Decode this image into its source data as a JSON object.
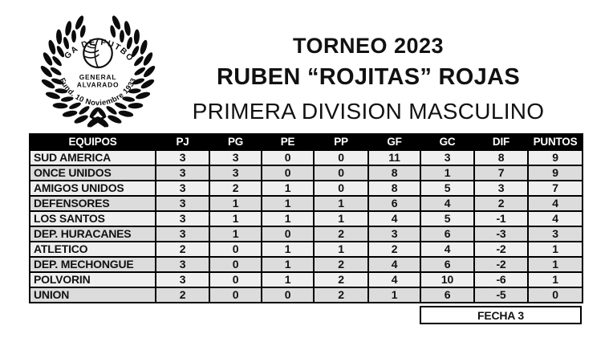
{
  "logo": {
    "arc_top_text": "LIGA DE FUTBOL",
    "center_text_line1": "GENERAL",
    "center_text_line2": "ALVARADO",
    "arc_bottom_text": "Fund. 10 Noviembre 1933"
  },
  "titles": {
    "tournament": "TORNEO 2023",
    "honoree": "RUBEN “ROJITAS” ROJAS",
    "division": "PRIMERA DIVISION MASCULINO"
  },
  "standings": {
    "columns": [
      "EQUIPOS",
      "PJ",
      "PG",
      "PE",
      "PP",
      "GF",
      "GC",
      "DIF",
      "PUNTOS"
    ],
    "rows": [
      {
        "team": "SUD AMERICA",
        "stats": [
          "3",
          "3",
          "0",
          "0",
          "11",
          "3",
          "8",
          "9"
        ]
      },
      {
        "team": "ONCE UNIDOS",
        "stats": [
          "3",
          "3",
          "0",
          "0",
          "8",
          "1",
          "7",
          "9"
        ]
      },
      {
        "team": "AMIGOS UNIDOS",
        "stats": [
          "3",
          "2",
          "1",
          "0",
          "8",
          "5",
          "3",
          "7"
        ]
      },
      {
        "team": "DEFENSORES",
        "stats": [
          "3",
          "1",
          "1",
          "1",
          "6",
          "4",
          "2",
          "4"
        ]
      },
      {
        "team": "LOS SANTOS",
        "stats": [
          "3",
          "1",
          "1",
          "1",
          "4",
          "5",
          "-1",
          "4"
        ]
      },
      {
        "team": "DEP. HURACANES",
        "stats": [
          "3",
          "1",
          "0",
          "2",
          "3",
          "6",
          "-3",
          "3"
        ]
      },
      {
        "team": "ATLETICO",
        "stats": [
          "2",
          "0",
          "1",
          "1",
          "2",
          "4",
          "-2",
          "1"
        ]
      },
      {
        "team": "DEP. MECHONGUE",
        "stats": [
          "3",
          "0",
          "1",
          "2",
          "4",
          "6",
          "-2",
          "1"
        ]
      },
      {
        "team": "POLVORIN",
        "stats": [
          "3",
          "0",
          "1",
          "2",
          "4",
          "10",
          "-6",
          "1"
        ]
      },
      {
        "team": "UNION",
        "stats": [
          "2",
          "0",
          "0",
          "2",
          "1",
          "6",
          "-5",
          "0"
        ]
      }
    ],
    "footer_label": "FECHA 3"
  },
  "colors": {
    "header_bg": "#000000",
    "header_text": "#ffffff",
    "row_light": "#efefef",
    "row_dark": "#dcdcdc",
    "border": "#000000"
  }
}
